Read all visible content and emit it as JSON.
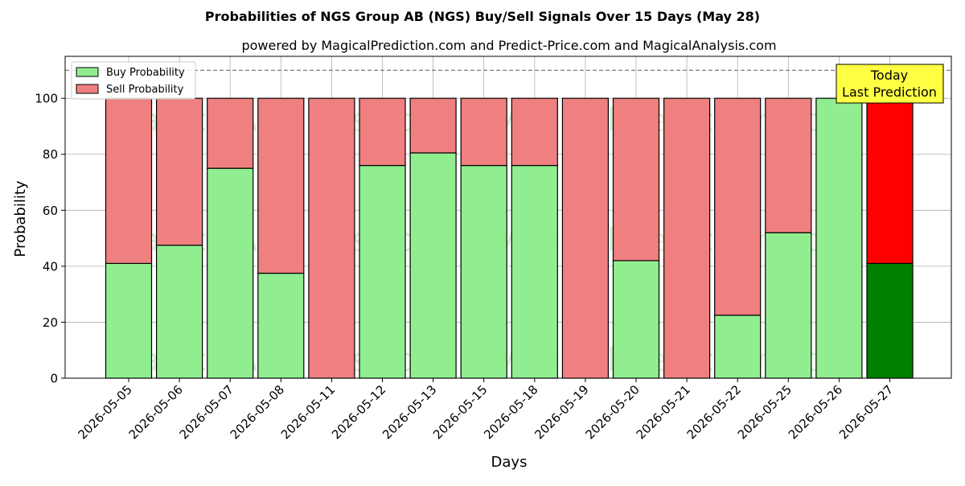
{
  "chart_data": {
    "type": "bar",
    "stacked": true,
    "title": "Probabilities of NGS Group AB (NGS) Buy/Sell Signals Over 15 Days (May 28)",
    "subtitle": "powered by MagicalPrediction.com and Predict-Price.com and MagicalAnalysis.com",
    "xlabel": "Days",
    "ylabel": "Probability",
    "ylim": [
      0,
      115
    ],
    "yticks": [
      0,
      20,
      40,
      60,
      80,
      100
    ],
    "reference_line": 110,
    "grid": true,
    "legend_position": "top-left",
    "categories": [
      "2026-05-05",
      "2026-05-06",
      "2026-05-07",
      "2026-05-08",
      "2026-05-11",
      "2026-05-12",
      "2026-05-13",
      "2026-05-15",
      "2026-05-18",
      "2026-05-19",
      "2026-05-20",
      "2026-05-21",
      "2026-05-22",
      "2026-05-25",
      "2026-05-26",
      "2026-05-27"
    ],
    "series": [
      {
        "name": "Buy Probability",
        "color": "#90ee90",
        "highlight_color": "#008000",
        "values": [
          41,
          47.5,
          75,
          37.5,
          0,
          76,
          80.5,
          76,
          76,
          0,
          42,
          0,
          22.5,
          52,
          100,
          41
        ]
      },
      {
        "name": "Sell Probability",
        "color": "#f08080",
        "highlight_color": "#ff0000",
        "values": [
          59,
          52.5,
          25,
          62.5,
          100,
          24,
          19.5,
          24,
          24,
          100,
          58,
          100,
          77.5,
          48,
          0,
          59
        ]
      }
    ],
    "highlight_index": 15,
    "annotation": {
      "lines": [
        "Today",
        "Last Prediction"
      ],
      "background": "#ffff44"
    },
    "watermarks": [
      "MagicalAnalysis.com",
      "MagicalPrediction.com"
    ]
  }
}
